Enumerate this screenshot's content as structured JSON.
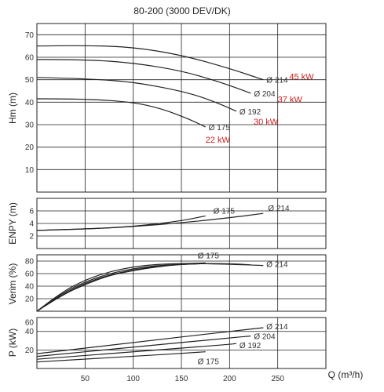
{
  "chart_data": {
    "type": "line",
    "title": "80-200 (3000 DEV/DK)",
    "xlabel": "Q (m³/h)",
    "xlim": [
      0,
      300
    ],
    "x_ticks": [
      "50",
      "100",
      "150",
      "200",
      "250"
    ],
    "grid": true,
    "panels": [
      {
        "id": "head",
        "ylabel": "Hm (m)",
        "ylim": [
          0,
          75
        ],
        "y_ticks": [
          "10",
          "20",
          "30",
          "40",
          "50",
          "60",
          "70"
        ],
        "series": [
          {
            "name": "Ø 214",
            "points": [
              [
                0,
                65
              ],
              [
                50,
                65.3
              ],
              [
                100,
                64.5
              ],
              [
                150,
                61
              ],
              [
                200,
                55
              ],
              [
                235,
                50
              ]
            ]
          },
          {
            "name": "Ø 204",
            "points": [
              [
                0,
                59
              ],
              [
                50,
                59
              ],
              [
                100,
                57.5
              ],
              [
                150,
                54
              ],
              [
                190,
                49
              ],
              [
                222,
                44
              ]
            ]
          },
          {
            "name": "Ø 192",
            "points": [
              [
                0,
                51
              ],
              [
                50,
                50.5
              ],
              [
                100,
                49
              ],
              [
                150,
                45
              ],
              [
                180,
                41
              ],
              [
                207,
                36
              ]
            ]
          },
          {
            "name": "Ø 175",
            "points": [
              [
                0,
                41.5
              ],
              [
                50,
                41.5
              ],
              [
                100,
                40
              ],
              [
                130,
                37
              ],
              [
                155,
                33
              ],
              [
                175,
                29
              ]
            ]
          }
        ],
        "annotations": [
          {
            "text": "45 kW",
            "x": 262,
            "y": 50
          },
          {
            "text": "37 kW",
            "x": 250,
            "y": 40
          },
          {
            "text": "30 kW",
            "x": 225,
            "y": 30
          },
          {
            "text": "22 kW",
            "x": 175,
            "y": 22
          }
        ]
      },
      {
        "id": "npsh",
        "ylabel": "ENPY (m)",
        "ylim": [
          0,
          8
        ],
        "y_ticks": [
          "2",
          "4",
          "6"
        ],
        "series": [
          {
            "name": "Ø 175",
            "points": [
              [
                0,
                2.9
              ],
              [
                50,
                3.1
              ],
              [
                100,
                3.5
              ],
              [
                150,
                4.4
              ],
              [
                175,
                5.2
              ]
            ]
          },
          {
            "name": "Ø 214",
            "points": [
              [
                0,
                2.9
              ],
              [
                50,
                3.1
              ],
              [
                100,
                3.5
              ],
              [
                150,
                4.1
              ],
              [
                200,
                4.9
              ],
              [
                235,
                5.6
              ]
            ]
          }
        ]
      },
      {
        "id": "efficiency",
        "ylabel": "Verim (%)",
        "ylim": [
          0,
          90
        ],
        "y_ticks": [
          "20",
          "40",
          "60",
          "80"
        ],
        "series": [
          {
            "name": "Ø 175",
            "points": [
              [
                0,
                0
              ],
              [
                25,
                30
              ],
              [
                50,
                50
              ],
              [
                75,
                63
              ],
              [
                100,
                71
              ],
              [
                125,
                75
              ],
              [
                150,
                76
              ],
              [
                175,
                77
              ]
            ]
          },
          {
            "name": "Ø 192",
            "points": [
              [
                0,
                0
              ],
              [
                25,
                28
              ],
              [
                50,
                47
              ],
              [
                75,
                60
              ],
              [
                100,
                68
              ],
              [
                125,
                73
              ],
              [
                150,
                75
              ],
              [
                175,
                76
              ],
              [
                207,
                75
              ]
            ]
          },
          {
            "name": "Ø 204",
            "points": [
              [
                0,
                0
              ],
              [
                25,
                26
              ],
              [
                50,
                45
              ],
              [
                75,
                58
              ],
              [
                100,
                66
              ],
              [
                125,
                72
              ],
              [
                150,
                75
              ],
              [
                175,
                76
              ],
              [
                200,
                76
              ],
              [
                222,
                74
              ]
            ]
          },
          {
            "name": "Ø 214",
            "points": [
              [
                0,
                0
              ],
              [
                25,
                25
              ],
              [
                50,
                43
              ],
              [
                75,
                57
              ],
              [
                100,
                65
              ],
              [
                125,
                71
              ],
              [
                150,
                75
              ],
              [
                175,
                76
              ],
              [
                200,
                75
              ],
              [
                235,
                73
              ]
            ]
          }
        ]
      },
      {
        "id": "power",
        "ylabel": "P (kW)",
        "ylim": [
          0,
          55
        ],
        "y_ticks": [
          "20",
          "40",
          "60"
        ],
        "series": [
          {
            "name": "Ø 214",
            "points": [
              [
                0,
                16
              ],
              [
                100,
                28
              ],
              [
                200,
                40
              ],
              [
                235,
                44
              ]
            ]
          },
          {
            "name": "Ø 204",
            "points": [
              [
                0,
                13
              ],
              [
                100,
                23
              ],
              [
                200,
                33
              ],
              [
                222,
                35
              ]
            ]
          },
          {
            "name": "Ø 192",
            "points": [
              [
                0,
                10
              ],
              [
                100,
                18
              ],
              [
                200,
                26
              ],
              [
                207,
                27
              ]
            ]
          },
          {
            "name": "Ø 175",
            "points": [
              [
                0,
                7
              ],
              [
                100,
                13
              ],
              [
                175,
                18
              ]
            ]
          }
        ]
      }
    ]
  }
}
